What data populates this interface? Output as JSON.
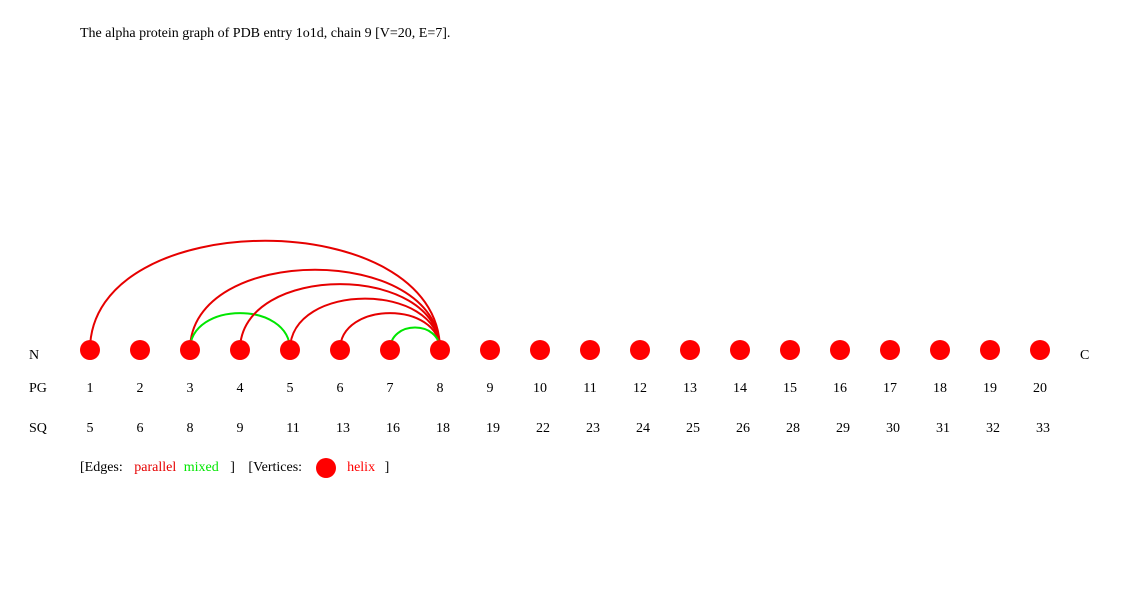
{
  "title": "The alpha protein graph of PDB entry 1o1d, chain 9 [V=20, E=7].",
  "row_labels": {
    "n_terminus": "N",
    "c_terminus": "C",
    "pg": "PG",
    "sq": "SQ"
  },
  "colors": {
    "parallel": "#e60000",
    "mixed": "#00e600",
    "helix": "#ff0000"
  },
  "vertices": [
    {
      "pg": "1",
      "sq": "5",
      "type": "helix"
    },
    {
      "pg": "2",
      "sq": "6",
      "type": "helix"
    },
    {
      "pg": "3",
      "sq": "8",
      "type": "helix"
    },
    {
      "pg": "4",
      "sq": "9",
      "type": "helix"
    },
    {
      "pg": "5",
      "sq": "11",
      "type": "helix"
    },
    {
      "pg": "6",
      "sq": "13",
      "type": "helix"
    },
    {
      "pg": "7",
      "sq": "16",
      "type": "helix"
    },
    {
      "pg": "8",
      "sq": "18",
      "type": "helix"
    },
    {
      "pg": "9",
      "sq": "19",
      "type": "helix"
    },
    {
      "pg": "10",
      "sq": "22",
      "type": "helix"
    },
    {
      "pg": "11",
      "sq": "23",
      "type": "helix"
    },
    {
      "pg": "12",
      "sq": "24",
      "type": "helix"
    },
    {
      "pg": "13",
      "sq": "25",
      "type": "helix"
    },
    {
      "pg": "14",
      "sq": "26",
      "type": "helix"
    },
    {
      "pg": "15",
      "sq": "28",
      "type": "helix"
    },
    {
      "pg": "16",
      "sq": "29",
      "type": "helix"
    },
    {
      "pg": "17",
      "sq": "30",
      "type": "helix"
    },
    {
      "pg": "18",
      "sq": "31",
      "type": "helix"
    },
    {
      "pg": "19",
      "sq": "32",
      "type": "helix"
    },
    {
      "pg": "20",
      "sq": "33",
      "type": "helix"
    }
  ],
  "edges": [
    {
      "from": 1,
      "to": 8,
      "type": "parallel"
    },
    {
      "from": 3,
      "to": 8,
      "type": "parallel"
    },
    {
      "from": 3,
      "to": 5,
      "type": "mixed"
    },
    {
      "from": 4,
      "to": 8,
      "type": "parallel"
    },
    {
      "from": 5,
      "to": 8,
      "type": "parallel"
    },
    {
      "from": 6,
      "to": 8,
      "type": "parallel"
    },
    {
      "from": 7,
      "to": 8,
      "type": "mixed"
    }
  ],
  "legend": {
    "edges_open": "[Edges:",
    "parallel": "parallel",
    "mixed": "mixed",
    "edges_close": "]",
    "vertices_open": "[Vertices:",
    "helix": "helix",
    "vertices_close": "]"
  }
}
